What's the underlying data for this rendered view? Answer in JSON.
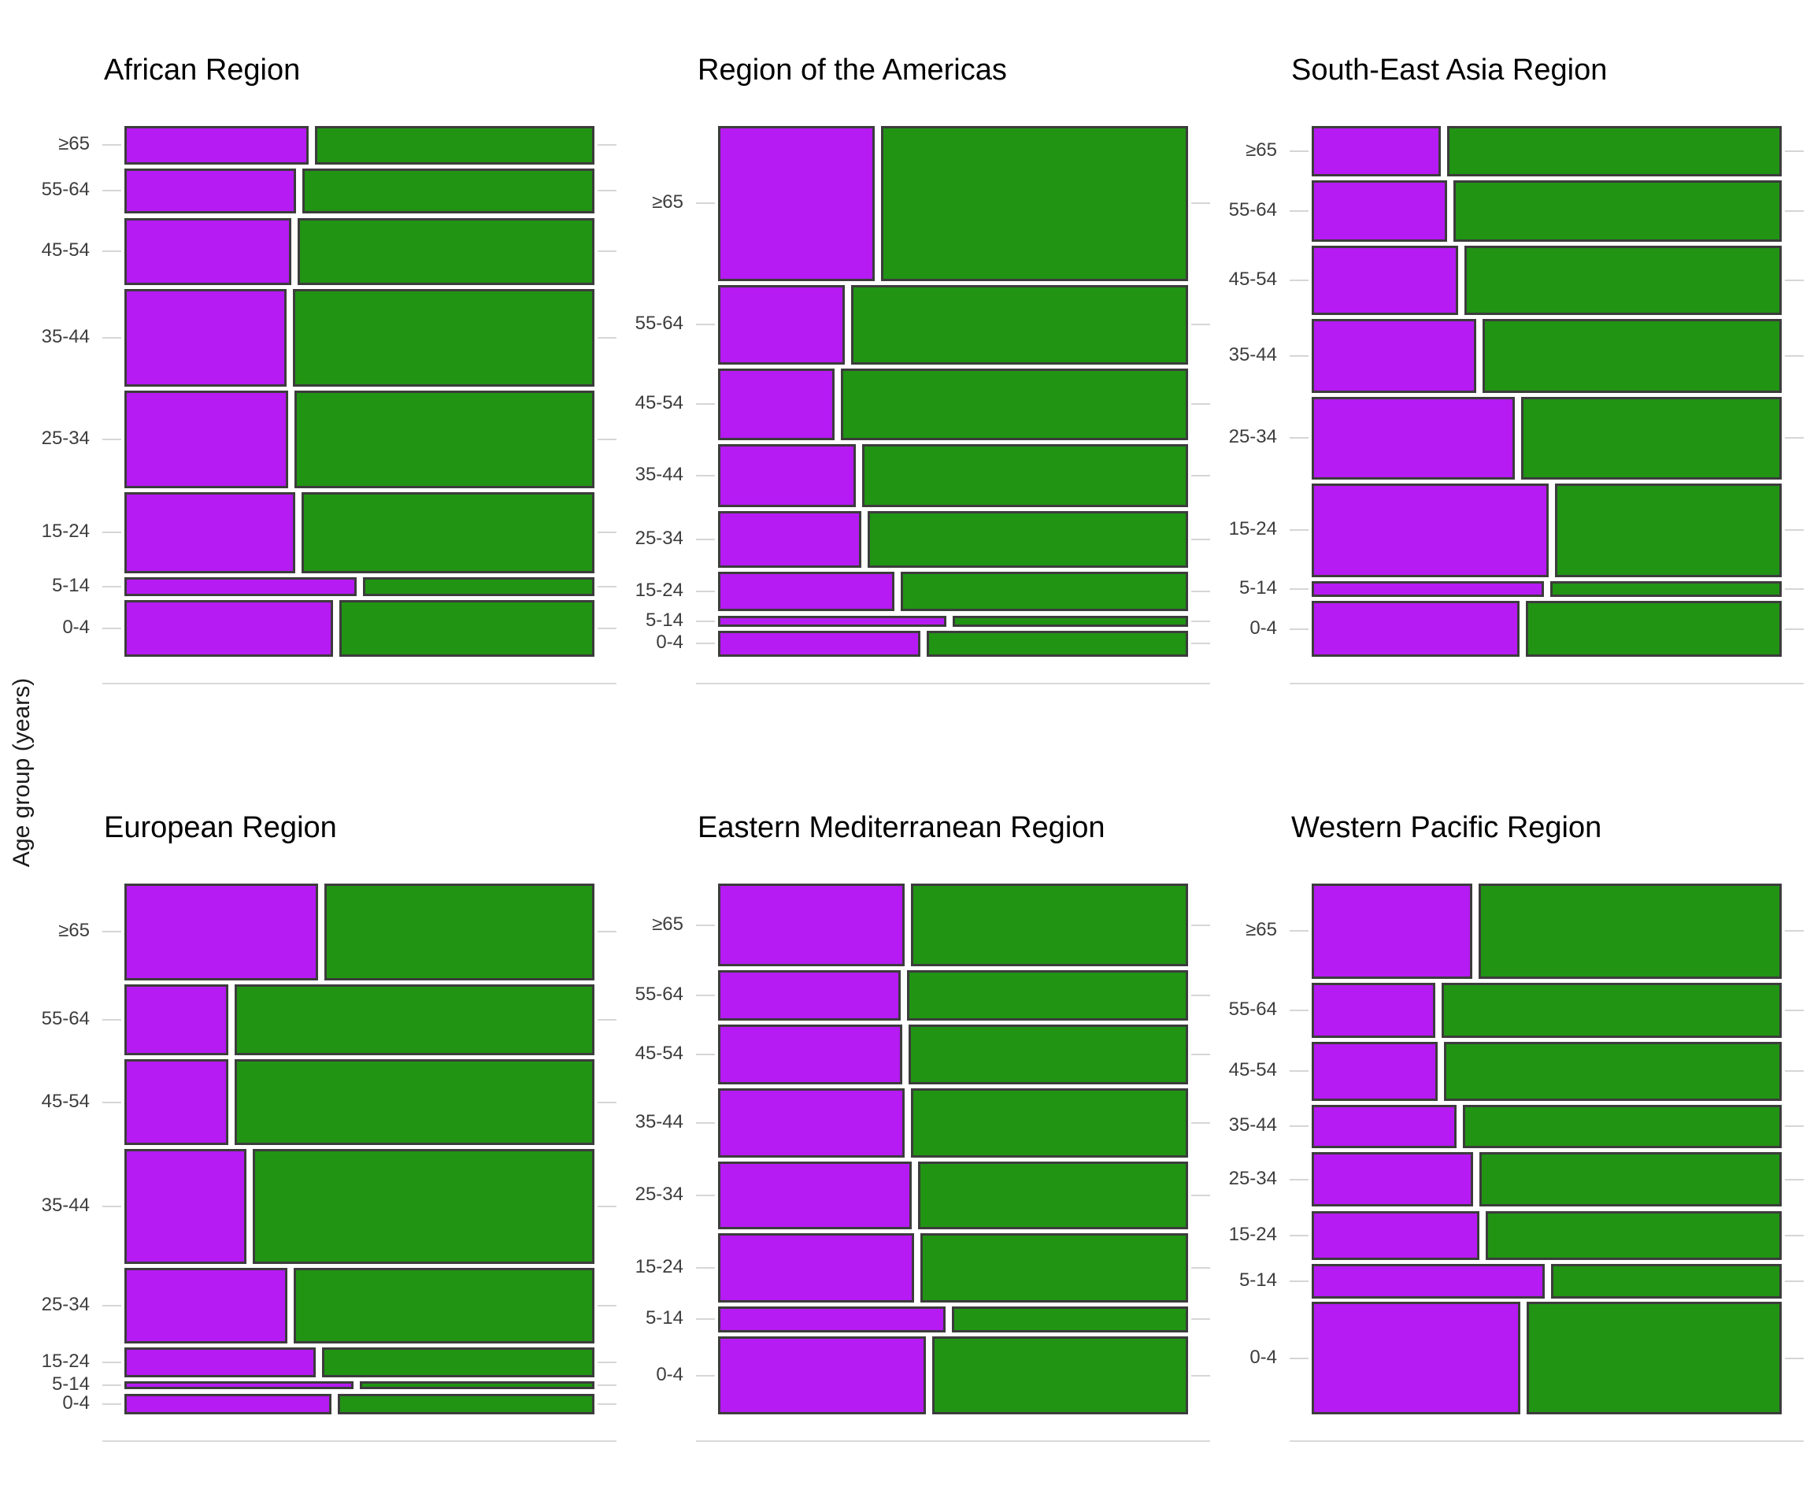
{
  "ylabel": "Age group (years)",
  "colors": {
    "left_segment": "#b51bf2",
    "right_segment": "#219414",
    "segment_border": "#3c3c3c",
    "gridline": "#d6d6d6",
    "tick_text": "#3d3d3d",
    "title_text": "#000000"
  },
  "chart_data": [
    {
      "type": "mosaic",
      "title": "African Region",
      "orientation": "horizontal-bars-stacked-vertically",
      "segments": [
        "purple-left",
        "green-right"
      ],
      "categories": [
        "≥65",
        "55-64",
        "45-54",
        "35-44",
        "25-34",
        "15-24",
        "5-14",
        "0-4"
      ],
      "rows": [
        {
          "age": "≥65",
          "height_frac": 0.0761,
          "left_frac": 0.399
        },
        {
          "age": "55-64",
          "height_frac": 0.0905,
          "left_frac": 0.372
        },
        {
          "age": "45-54",
          "height_frac": 0.1338,
          "left_frac": 0.362
        },
        {
          "age": "35-44",
          "height_frac": 0.1934,
          "left_frac": 0.352
        },
        {
          "age": "25-34",
          "height_frac": 0.195,
          "left_frac": 0.355
        },
        {
          "age": "15-24",
          "height_frac": 0.1607,
          "left_frac": 0.37
        },
        {
          "age": "5-14",
          "height_frac": 0.0382,
          "left_frac": 0.5
        },
        {
          "age": "0-4",
          "height_frac": 0.1123,
          "left_frac": 0.451
        }
      ]
    },
    {
      "type": "mosaic",
      "title": "Region of the Americas",
      "orientation": "horizontal-bars-stacked-vertically",
      "segments": [
        "purple-left",
        "green-right"
      ],
      "categories": [
        "≥65",
        "55-64",
        "45-54",
        "35-44",
        "25-34",
        "15-24",
        "5-14",
        "0-4"
      ],
      "rows": [
        {
          "age": "≥65",
          "height_frac": 0.3076,
          "left_frac": 0.34
        },
        {
          "age": "55-64",
          "height_frac": 0.1582,
          "left_frac": 0.276
        },
        {
          "age": "45-54",
          "height_frac": 0.1436,
          "left_frac": 0.255
        },
        {
          "age": "35-44",
          "height_frac": 0.1239,
          "left_frac": 0.299
        },
        {
          "age": "25-34",
          "height_frac": 0.113,
          "left_frac": 0.311
        },
        {
          "age": "15-24",
          "height_frac": 0.0794,
          "left_frac": 0.382
        },
        {
          "age": "5-14",
          "height_frac": 0.0219,
          "left_frac": 0.493
        },
        {
          "age": "0-4",
          "height_frac": 0.0525,
          "left_frac": 0.437
        }
      ]
    },
    {
      "type": "mosaic",
      "title": "South-East Asia Region",
      "orientation": "horizontal-bars-stacked-vertically",
      "segments": [
        "purple-left",
        "green-right"
      ],
      "categories": [
        "≥65",
        "55-64",
        "45-54",
        "35-44",
        "25-34",
        "15-24",
        "5-14",
        "0-4"
      ],
      "rows": [
        {
          "age": "≥65",
          "height_frac": 0.1007,
          "left_frac": 0.281
        },
        {
          "age": "55-64",
          "height_frac": 0.122,
          "left_frac": 0.295
        },
        {
          "age": "45-54",
          "height_frac": 0.1373,
          "left_frac": 0.318
        },
        {
          "age": "35-44",
          "height_frac": 0.1472,
          "left_frac": 0.357
        },
        {
          "age": "25-34",
          "height_frac": 0.164,
          "left_frac": 0.439
        },
        {
          "age": "15-24",
          "height_frac": 0.1861,
          "left_frac": 0.511
        },
        {
          "age": "5-14",
          "height_frac": 0.032,
          "left_frac": 0.501
        },
        {
          "age": "0-4",
          "height_frac": 0.1106,
          "left_frac": 0.449
        }
      ]
    },
    {
      "type": "mosaic",
      "title": "European Region",
      "orientation": "horizontal-bars-stacked-vertically",
      "segments": [
        "purple-left",
        "green-right"
      ],
      "categories": [
        "≥65",
        "55-64",
        "45-54",
        "35-44",
        "25-34",
        "15-24",
        "5-14",
        "0-4"
      ],
      "rows": [
        {
          "age": "≥65",
          "height_frac": 0.1923,
          "left_frac": 0.419
        },
        {
          "age": "55-64",
          "height_frac": 0.141,
          "left_frac": 0.227
        },
        {
          "age": "45-54",
          "height_frac": 0.1712,
          "left_frac": 0.227
        },
        {
          "age": "35-44",
          "height_frac": 0.2278,
          "left_frac": 0.266
        },
        {
          "age": "25-34",
          "height_frac": 0.1508,
          "left_frac": 0.354
        },
        {
          "age": "15-24",
          "height_frac": 0.0588,
          "left_frac": 0.414
        },
        {
          "age": "5-14",
          "height_frac": 0.0166,
          "left_frac": 0.494
        },
        {
          "age": "0-4",
          "height_frac": 0.0415,
          "left_frac": 0.447
        }
      ]
    },
    {
      "type": "mosaic",
      "title": "Eastern Mediterranean Region",
      "orientation": "horizontal-bars-stacked-vertically",
      "segments": [
        "purple-left",
        "green-right"
      ],
      "categories": [
        "≥65",
        "55-64",
        "45-54",
        "35-44",
        "25-34",
        "15-24",
        "5-14",
        "0-4"
      ],
      "rows": [
        {
          "age": "≥65",
          "height_frac": 0.1646,
          "left_frac": 0.403
        },
        {
          "age": "55-64",
          "height_frac": 0.0995,
          "left_frac": 0.396
        },
        {
          "age": "45-54",
          "height_frac": 0.1194,
          "left_frac": 0.399
        },
        {
          "age": "35-44",
          "height_frac": 0.1378,
          "left_frac": 0.403
        },
        {
          "age": "25-34",
          "height_frac": 0.134,
          "left_frac": 0.418
        },
        {
          "age": "15-24",
          "height_frac": 0.1378,
          "left_frac": 0.424
        },
        {
          "age": "5-14",
          "height_frac": 0.0521,
          "left_frac": 0.49
        },
        {
          "age": "0-4",
          "height_frac": 0.1547,
          "left_frac": 0.448
        }
      ]
    },
    {
      "type": "mosaic",
      "title": "Western Pacific Region",
      "orientation": "horizontal-bars-stacked-vertically",
      "segments": [
        "purple-left",
        "green-right"
      ],
      "categories": [
        "≥65",
        "55-64",
        "45-54",
        "35-44",
        "25-34",
        "15-24",
        "5-14",
        "0-4"
      ],
      "rows": [
        {
          "age": "≥65",
          "height_frac": 0.1887,
          "left_frac": 0.348
        },
        {
          "age": "55-64",
          "height_frac": 0.1108,
          "left_frac": 0.269
        },
        {
          "age": "45-54",
          "height_frac": 0.1161,
          "left_frac": 0.274
        },
        {
          "age": "35-44",
          "height_frac": 0.0863,
          "left_frac": 0.315
        },
        {
          "age": "25-34",
          "height_frac": 0.1092,
          "left_frac": 0.35
        },
        {
          "age": "15-24",
          "height_frac": 0.097,
          "left_frac": 0.364
        },
        {
          "age": "5-14",
          "height_frac": 0.0688,
          "left_frac": 0.503
        },
        {
          "age": "0-4",
          "height_frac": 0.2231,
          "left_frac": 0.451
        }
      ]
    }
  ]
}
